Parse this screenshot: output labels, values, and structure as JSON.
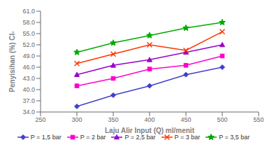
{
  "chart_data": {
    "type": "line",
    "xlabel": "Laju Alir Input  (Q) ml/menit",
    "ylabel": "Penyisihan (%) Cl-",
    "x": [
      300,
      350,
      400,
      450,
      500
    ],
    "series": [
      {
        "name": "P = 1,5 bar",
        "color": "#4040CC",
        "marker": "diamond",
        "values": [
          35.5,
          38.5,
          41.0,
          44.0,
          46.0
        ]
      },
      {
        "name": "P = 2 bar",
        "color": "#FF00CC",
        "marker": "square",
        "values": [
          41.0,
          43.0,
          45.5,
          46.5,
          49.0
        ]
      },
      {
        "name": "P = 2,5 bar",
        "color": "#9900CC",
        "marker": "triangle",
        "values": [
          44.0,
          46.5,
          48.0,
          50.0,
          52.0
        ]
      },
      {
        "name": "P = 3 bar",
        "color": "#FF3300",
        "marker": "x",
        "values": [
          47.0,
          49.5,
          52.0,
          50.5,
          55.5
        ]
      },
      {
        "name": "P = 3,5 bar",
        "color": "#00AA00",
        "marker": "star",
        "values": [
          50.0,
          52.5,
          54.5,
          56.5,
          58.0
        ]
      }
    ],
    "xlim": [
      250,
      550
    ],
    "ylim": [
      34.0,
      61.0
    ],
    "xticks": [
      250,
      300,
      350,
      400,
      450,
      500,
      550
    ],
    "yticks": [
      {
        "value": 34,
        "label": "34.0"
      },
      {
        "value": 37,
        "label": "37.0"
      },
      {
        "value": 40,
        "label": "40.0"
      },
      {
        "value": 43,
        "label": "43.0"
      },
      {
        "value": 46,
        "label": "46.0"
      },
      {
        "value": 49,
        "label": "49.0"
      },
      {
        "value": 52,
        "label": "52.0"
      },
      {
        "value": 55,
        "label": "55.0"
      },
      {
        "value": 58,
        "label": "58.0"
      },
      {
        "value": 61,
        "label": "61.0"
      }
    ],
    "grid": false,
    "legend": "bottom"
  }
}
